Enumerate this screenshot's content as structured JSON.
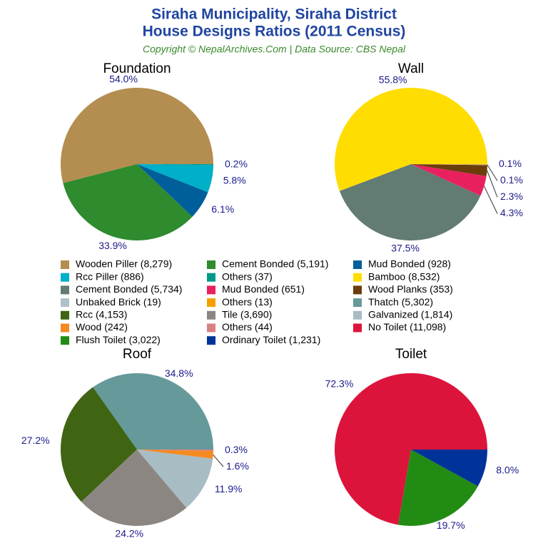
{
  "header": {
    "title": [
      "Siraha Municipality, Siraha District",
      "House Designs Ratios (2011 Census)"
    ],
    "subtitle": "Copyright © NepalArchives.Com | Data Source: CBS Nepal"
  },
  "chart_data": [
    {
      "type": "pie",
      "title": "Foundation",
      "categories": [
        "Wooden Piller (8,279)",
        "Cement Bonded (5,191)",
        "Mud Bonded (928)",
        "Rcc Piller (886)",
        "Others (37)"
      ],
      "values": [
        54.0,
        33.9,
        6.1,
        5.8,
        0.2
      ],
      "value_labels": [
        "54.0%",
        "33.9%",
        "6.1%",
        "5.8%",
        "0.2%"
      ],
      "colors": [
        "#b38e50",
        "#2e8b2e",
        "#005f9a",
        "#00afc8",
        "#009988"
      ]
    },
    {
      "type": "pie",
      "title": "Wall",
      "categories": [
        "Bamboo (8,532)",
        "Cement Bonded (5,734)",
        "Mud Bonded (651)",
        "Wood Planks (353)",
        "Unbaked Brick (19)",
        "Others (13)"
      ],
      "values": [
        55.8,
        37.5,
        4.3,
        2.3,
        0.1,
        0.1
      ],
      "value_labels": [
        "55.8%",
        "37.5%",
        "4.3%",
        "2.3%",
        "0.1%",
        "0.1%"
      ],
      "colors": [
        "#ffdd00",
        "#627b73",
        "#e8215e",
        "#6a3d0b",
        "#b0c0c8",
        "#f5a000"
      ]
    },
    {
      "type": "pie",
      "title": "Roof",
      "categories": [
        "Thatch (5,302)",
        "Rcc (4,153)",
        "Tile (3,690)",
        "Galvanized (1,814)",
        "Wood (242)",
        "Others (44)"
      ],
      "values": [
        34.8,
        27.2,
        24.2,
        11.9,
        1.6,
        0.3
      ],
      "value_labels": [
        "34.8%",
        "27.2%",
        "24.2%",
        "11.9%",
        "1.6%",
        "0.3%"
      ],
      "colors": [
        "#66999a",
        "#3f6412",
        "#8c8682",
        "#a8bcc4",
        "#f58a20",
        "#d98080"
      ]
    },
    {
      "type": "pie",
      "title": "Toilet",
      "categories": [
        "No Toilet (11,098)",
        "Flush Toilet (3,022)",
        "Ordinary Toilet (1,231)"
      ],
      "values": [
        72.3,
        19.7,
        8.0
      ],
      "value_labels": [
        "72.3%",
        "19.7%",
        "8.0%"
      ],
      "colors": [
        "#dc143c",
        "#228b14",
        "#003399"
      ]
    }
  ]
}
